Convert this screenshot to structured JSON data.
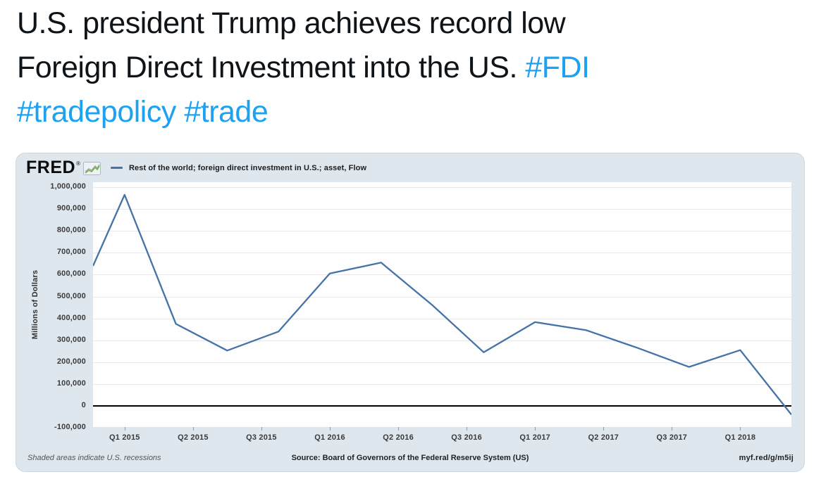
{
  "tweet": {
    "lines": [
      [
        {
          "t": "U.S. president Trump achieves record low",
          "c": "text"
        }
      ],
      [
        {
          "t": "Foreign Direct Investment into the US. ",
          "c": "text"
        },
        {
          "t": "#FDI",
          "c": "link"
        }
      ],
      [
        {
          "t": "#tradepolicy",
          "c": "link"
        },
        {
          "t": " ",
          "c": "text"
        },
        {
          "t": "#trade",
          "c": "link"
        }
      ]
    ],
    "link_color": "#1da1f2"
  },
  "chart": {
    "logo_text": "FRED",
    "logo_reg": "®",
    "footer": {
      "note": "Shaded areas indicate U.S. recessions",
      "source": "Source: Board of Governors of the Federal Reserve System (US)",
      "short_url": "myf.red/g/m5ij"
    }
  },
  "chart_data": {
    "type": "line",
    "series_name": "Rest of the world; foreign direct investment in U.S.; asset, Flow",
    "ylabel": "Millions of Dollars",
    "x": [
      "Q4 2014",
      "Q1 2015",
      "Q2 2015",
      "Q3 2015",
      "Q4 2015",
      "Q1 2016",
      "Q2 2016",
      "Q3 2016",
      "Q4 2016",
      "Q1 2017",
      "Q2 2017",
      "Q3 2017",
      "Q4 2017",
      "Q1 2018",
      "Q2 2018"
    ],
    "values": [
      640000,
      965000,
      375000,
      253000,
      340000,
      605000,
      655000,
      460000,
      245000,
      383000,
      346000,
      265000,
      178000,
      255000,
      -40000
    ],
    "x_axis_labels": [
      "Q1 2015",
      "Q2 2015",
      "Q3 2015",
      "Q1 2016",
      "Q2 2016",
      "Q3 2016",
      "Q1 2017",
      "Q2 2017",
      "Q3 2017",
      "Q1 2018"
    ],
    "y_ticks": [
      "1,000,000",
      "900,000",
      "800,000",
      "700,000",
      "600,000",
      "500,000",
      "400,000",
      "300,000",
      "200,000",
      "100,000",
      "0",
      "-100,000"
    ],
    "ylim": [
      -100000,
      1020000
    ],
    "grid": "horizontal",
    "line_color": "#4573a7",
    "zero_line_color": "#000000",
    "legend_position": "top"
  }
}
